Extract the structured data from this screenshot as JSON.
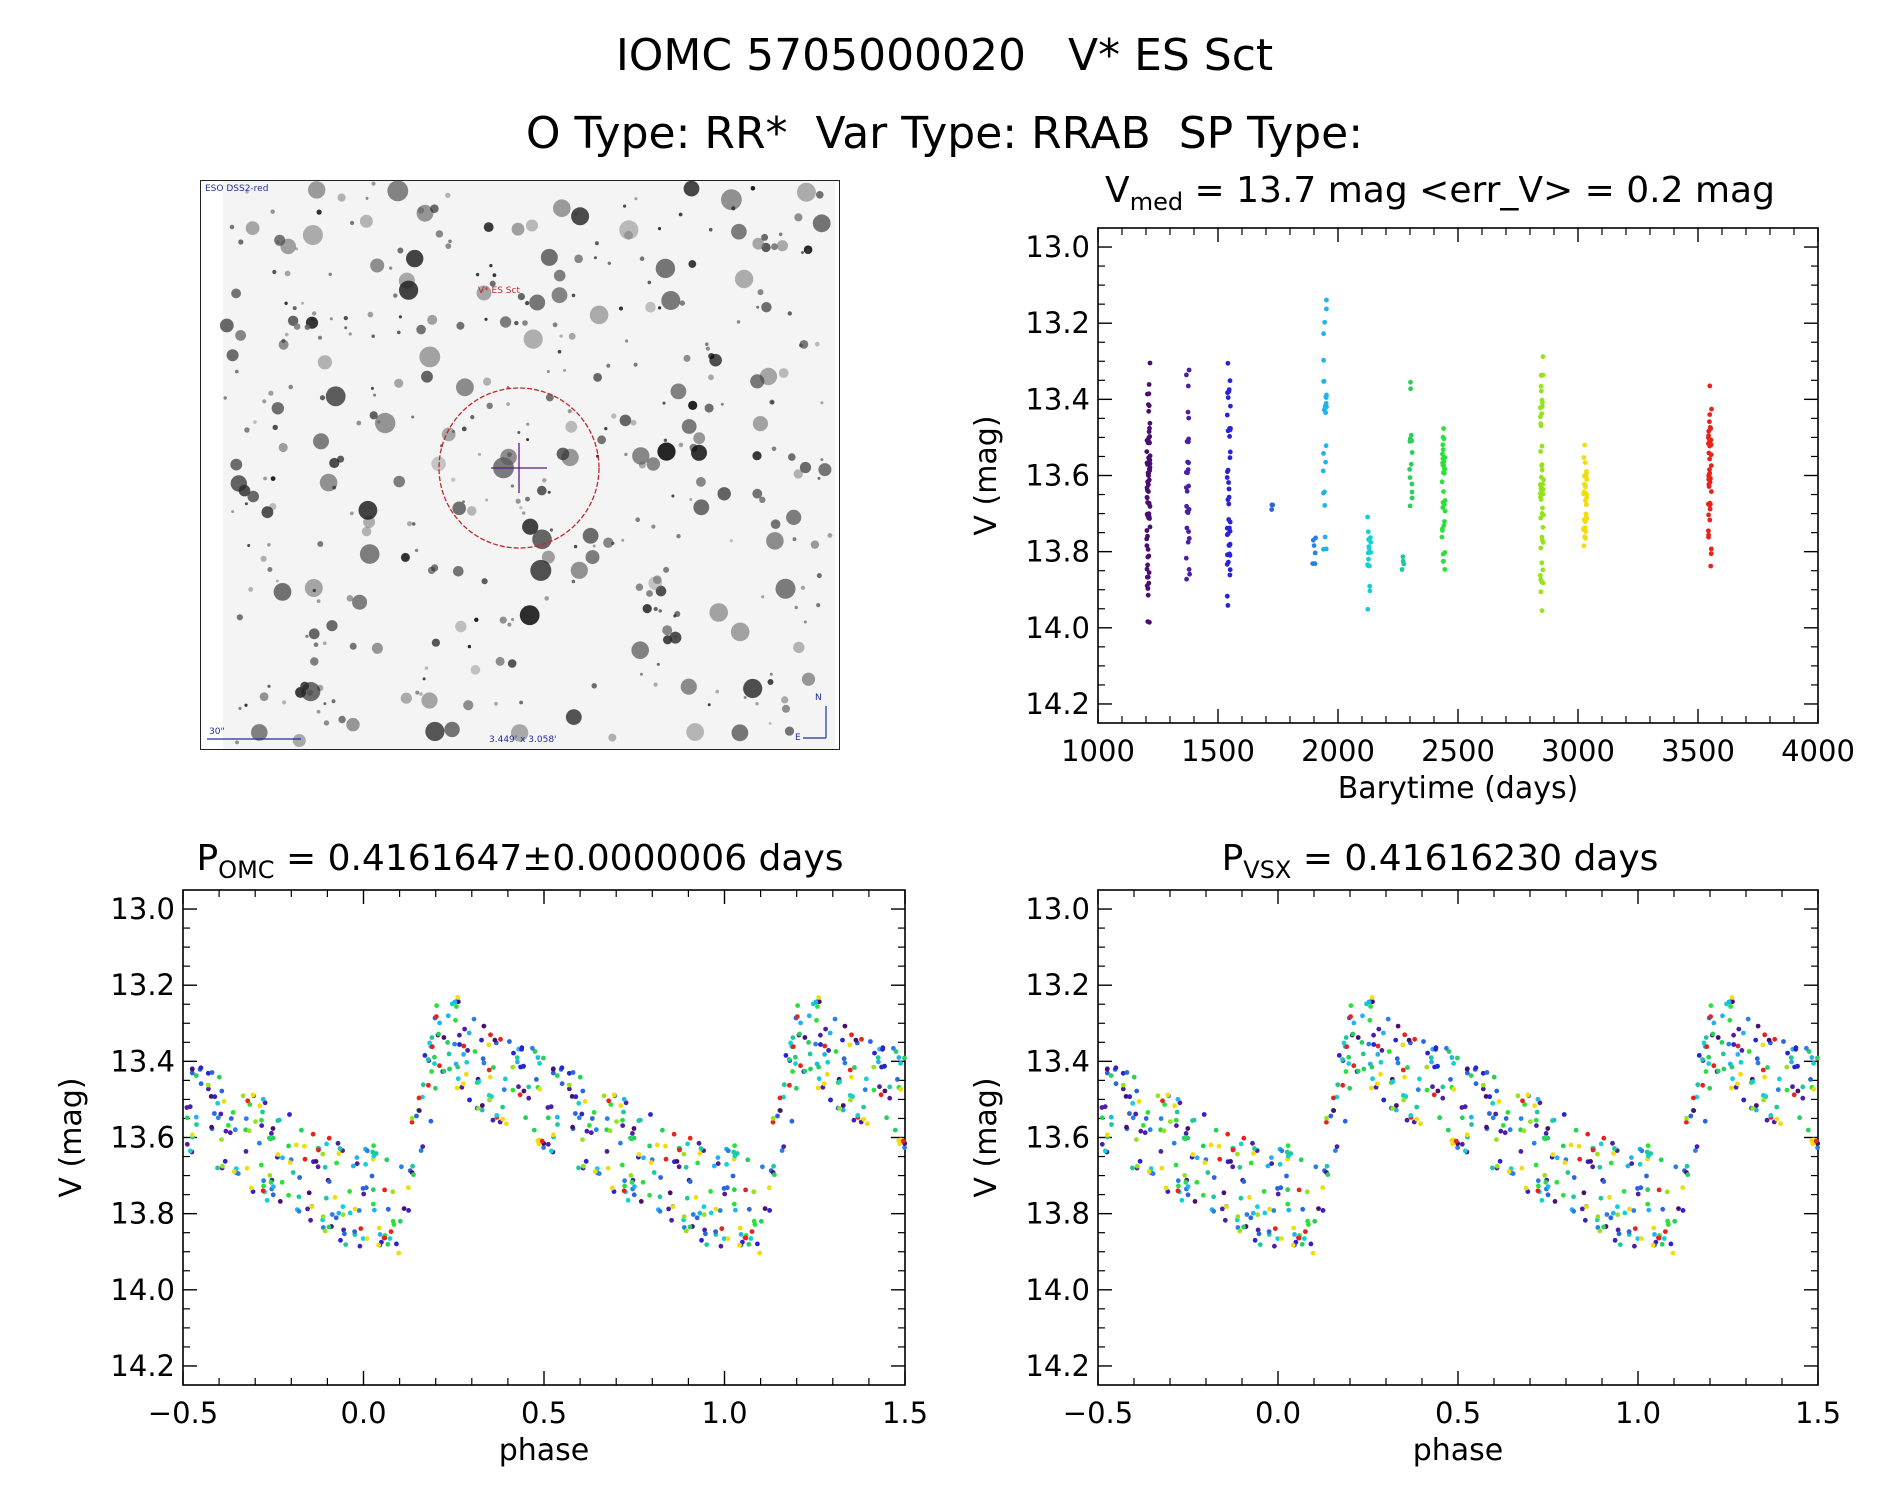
{
  "title": "IOMC 5705000020   V* ES Sct",
  "subtitle": "O Type: RR*  Var Type: RRAB  SP Type:",
  "image": {
    "survey_label": "ESO DSS2-red",
    "object_label": "V* ES Sct",
    "scale_label": "30\"",
    "fov_label": "3.449' x 3.058'",
    "north_label": "N",
    "east_label": "E"
  },
  "colors": {
    "marker_circle": "#c0272d",
    "marker_cross": "#5b1a8a",
    "scale_bar": "#1c2f9c"
  },
  "chart_data": [
    {
      "id": "lightcurve",
      "type": "scatter",
      "title_main": "V",
      "title_sub": "med",
      "title_rest": " = 13.7 mag <err_V> = 0.2 mag",
      "xlabel": "Barytime (days)",
      "ylabel": "V (mag)",
      "xlim": [
        1000,
        4000
      ],
      "ylim": [
        14.25,
        12.95
      ],
      "xticks": [
        "1000",
        "1500",
        "2000",
        "2500",
        "3000",
        "3500",
        "4000"
      ],
      "yticks": [
        "13.0",
        "13.2",
        "13.4",
        "13.6",
        "13.8",
        "14.0",
        "14.2"
      ],
      "clusters": [
        {
          "x": 1210,
          "ymin": 13.26,
          "ymax": 14.02,
          "n": 70,
          "color": "#4a0f6e"
        },
        {
          "x": 1375,
          "ymin": 13.31,
          "ymax": 13.95,
          "n": 28,
          "color": "#4b1fa8"
        },
        {
          "x": 1545,
          "ymin": 13.28,
          "ymax": 14.03,
          "n": 42,
          "color": "#2b22d6"
        },
        {
          "x": 1730,
          "ymin": 13.67,
          "ymax": 13.69,
          "n": 3,
          "color": "#2a64e0"
        },
        {
          "x": 1900,
          "ymin": 13.72,
          "ymax": 13.86,
          "n": 6,
          "color": "#2a7ee8"
        },
        {
          "x": 1945,
          "ymin": 13.1,
          "ymax": 13.84,
          "n": 26,
          "color": "#1fb4f0"
        },
        {
          "x": 2130,
          "ymin": 13.62,
          "ymax": 14.05,
          "n": 16,
          "color": "#14d0d4"
        },
        {
          "x": 2270,
          "ymin": 13.79,
          "ymax": 13.85,
          "n": 4,
          "color": "#1ec89c"
        },
        {
          "x": 2305,
          "ymin": 13.32,
          "ymax": 13.75,
          "n": 14,
          "color": "#28cf5a"
        },
        {
          "x": 2440,
          "ymin": 13.4,
          "ymax": 13.88,
          "n": 34,
          "color": "#2ce03a"
        },
        {
          "x": 2850,
          "ymin": 13.2,
          "ymax": 14.0,
          "n": 52,
          "color": "#96e21e"
        },
        {
          "x": 3030,
          "ymin": 13.52,
          "ymax": 13.82,
          "n": 38,
          "color": "#f2dc0a"
        },
        {
          "x": 3550,
          "ymin": 13.31,
          "ymax": 13.88,
          "n": 44,
          "color": "#e8231a"
        }
      ]
    },
    {
      "id": "phase-omc",
      "type": "scatter",
      "title_main": "P",
      "title_sub": "OMC",
      "title_rest": " = 0.4161647±0.0000006 days",
      "xlabel": "phase",
      "ylabel": "V (mag)",
      "xlim": [
        -0.5,
        1.5
      ],
      "ylim": [
        14.25,
        12.95
      ],
      "xticks": [
        "−0.5",
        "0.0",
        "0.5",
        "1.0",
        "1.5"
      ],
      "yticks": [
        "13.0",
        "13.2",
        "13.4",
        "13.6",
        "13.8",
        "14.0",
        "14.2"
      ]
    },
    {
      "id": "phase-vsx",
      "type": "scatter",
      "title_main": "P",
      "title_sub": "VSX",
      "title_rest": " = 0.41616230 days",
      "xlabel": "phase",
      "ylabel": "V (mag)",
      "xlim": [
        -0.5,
        1.5
      ],
      "ylim": [
        14.25,
        12.95
      ],
      "xticks": [
        "−0.5",
        "0.0",
        "0.5",
        "1.0",
        "1.5"
      ],
      "yticks": [
        "13.0",
        "13.2",
        "13.4",
        "13.6",
        "13.8",
        "14.0",
        "14.2"
      ]
    }
  ]
}
